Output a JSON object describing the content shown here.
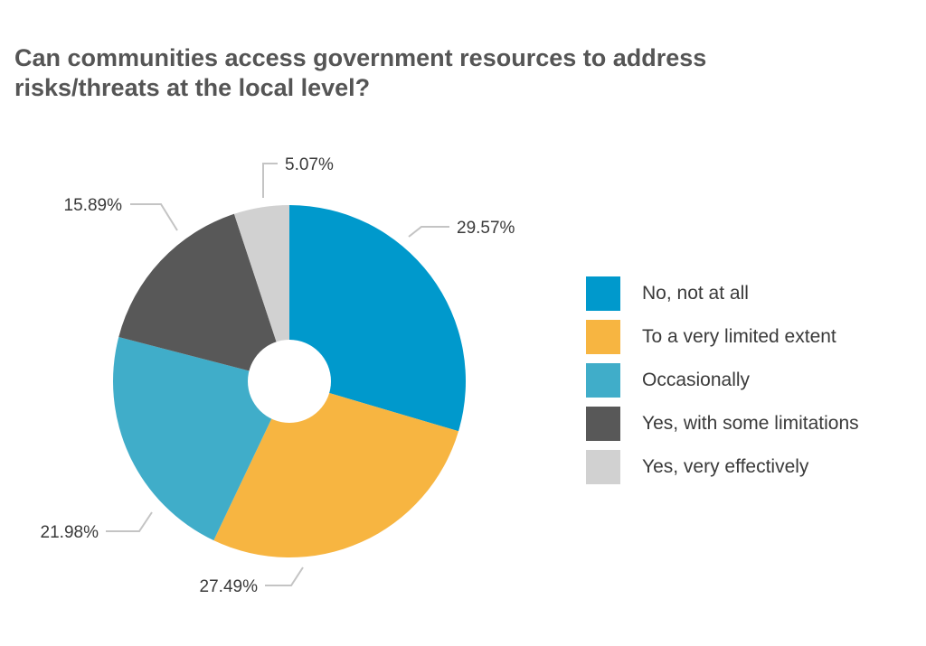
{
  "chart_data": {
    "type": "pie",
    "title_line1": "Can communities access government resources to address",
    "title_line2": "risks/threats at the local level?",
    "categories": [
      "No, not at all",
      "To a very limited extent",
      "Occasionally",
      "Yes, with some limitations",
      "Yes, very effectively"
    ],
    "values": [
      29.57,
      27.49,
      21.98,
      15.89,
      5.07
    ],
    "value_labels": [
      "29.57%",
      "27.49%",
      "21.98%",
      "15.89%",
      "5.07%"
    ],
    "colors": [
      "#0099cc",
      "#f7b541",
      "#40adc9",
      "#585858",
      "#d1d1d1"
    ],
    "legend_position": "right",
    "donut": true
  }
}
